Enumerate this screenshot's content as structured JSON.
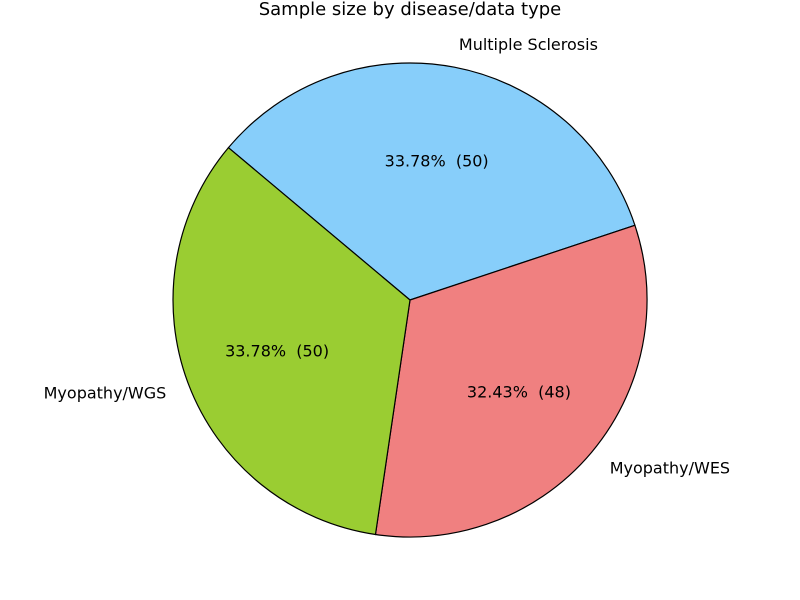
{
  "chart_data": {
    "type": "pie",
    "title": "Sample size by disease/data type",
    "slices": [
      {
        "label": "Multiple Sclerosis",
        "value": 50,
        "percent_label": "33.78%  (50)",
        "color": "#87CEFA"
      },
      {
        "label": "Myopathy/WES",
        "value": 48,
        "percent_label": "32.43%  (48)",
        "color": "#F08080"
      },
      {
        "label": "Myopathy/WGS",
        "value": 50,
        "percent_label": "33.78%  (50)",
        "color": "#9ACD32"
      }
    ],
    "edge_color": "#000000",
    "direction": "clockwise",
    "start_angle_deg": 140
  }
}
